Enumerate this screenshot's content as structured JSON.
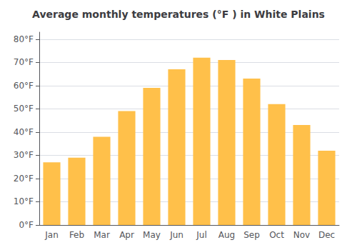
{
  "chart_data": {
    "type": "bar",
    "title": "Average monthly temperatures (°F ) in White Plains",
    "categories": [
      "Jan",
      "Feb",
      "Mar",
      "Apr",
      "May",
      "Jun",
      "Jul",
      "Aug",
      "Sep",
      "Oct",
      "Nov",
      "Dec"
    ],
    "values": [
      27,
      29,
      38,
      49,
      59,
      67,
      72,
      71,
      63,
      52,
      43,
      32
    ],
    "color": "#FFC04A",
    "ylim": [
      0,
      83
    ],
    "yticks": [
      {
        "value": 0,
        "label": "0°F"
      },
      {
        "value": 10,
        "label": "10°F"
      },
      {
        "value": 20,
        "label": "20°F"
      },
      {
        "value": 30,
        "label": "30°F"
      },
      {
        "value": 40,
        "label": "40°F"
      },
      {
        "value": 50,
        "label": "50°F"
      },
      {
        "value": 60,
        "label": "60°F"
      },
      {
        "value": 70,
        "label": "70°F"
      },
      {
        "value": 80,
        "label": "80°F"
      }
    ],
    "grid": true
  }
}
